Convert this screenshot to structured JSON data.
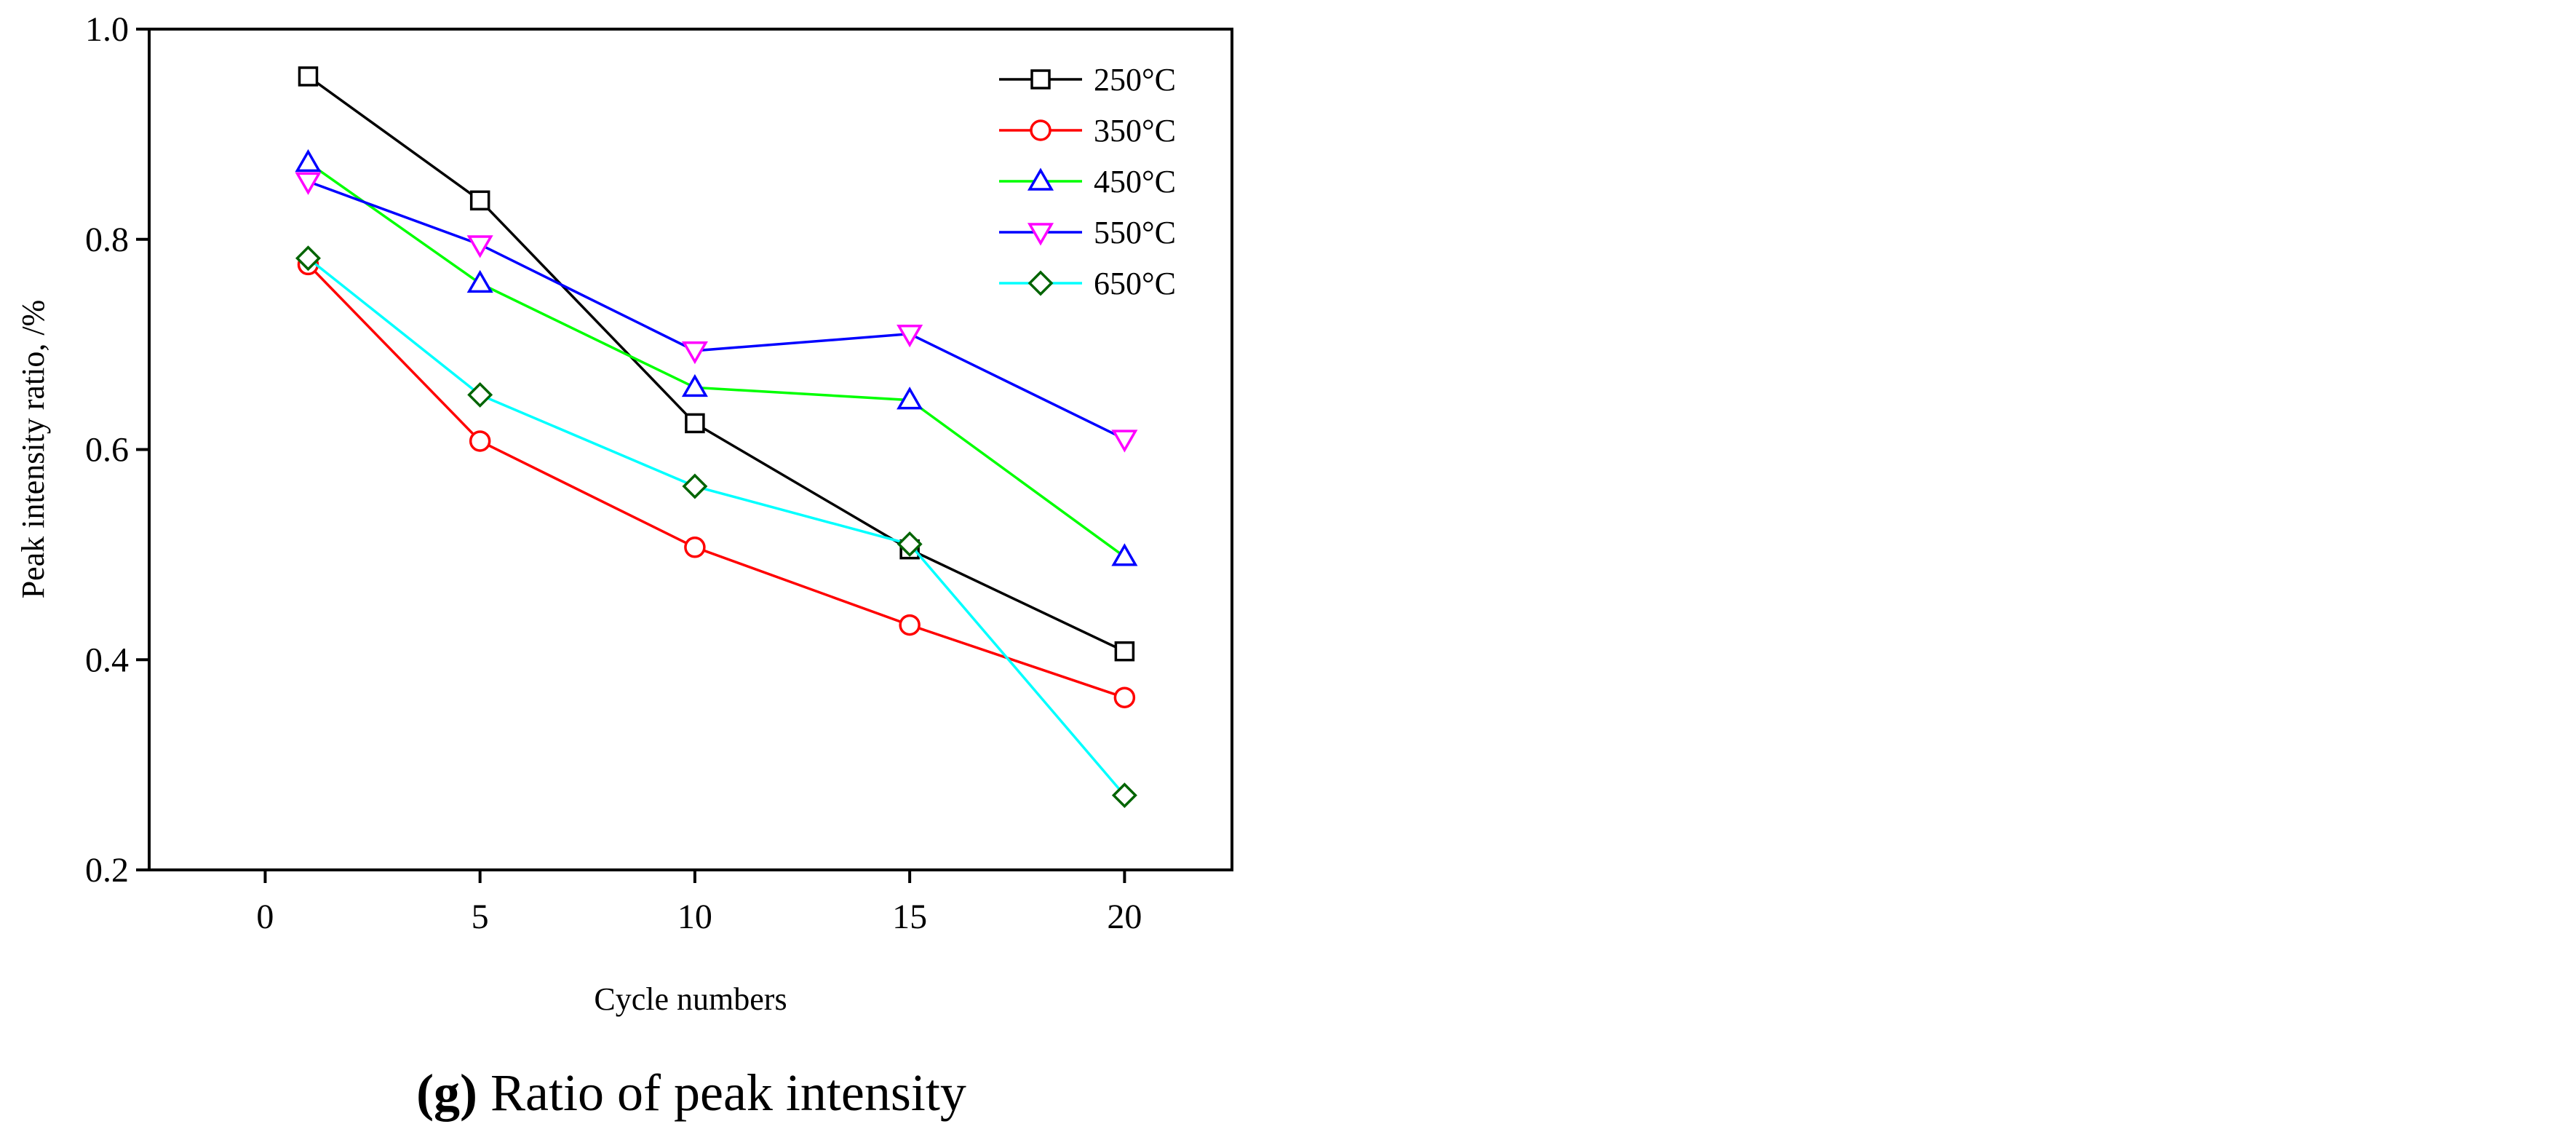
{
  "chart_data": {
    "type": "line",
    "xlabel": "Cycle numbers",
    "ylabel": "Peak intensity ratio, /%",
    "xlim": [
      -2.7,
      22.5
    ],
    "ylim": [
      0.2,
      1.0
    ],
    "xticks": [
      0,
      5,
      10,
      15,
      20
    ],
    "yticks": [
      0.2,
      0.4,
      0.6,
      0.8,
      1.0
    ],
    "xtick_labels": [
      "0",
      "5",
      "10",
      "15",
      "20"
    ],
    "ytick_labels": [
      "0.2",
      "0.4",
      "0.6",
      "0.8",
      "1.0"
    ],
    "legend_position": "top-right",
    "series": [
      {
        "name": "250°C",
        "color": "#000000",
        "marker": "square",
        "x": [
          1,
          5,
          10,
          15,
          20
        ],
        "values": [
          0.955,
          0.837,
          0.625,
          0.505,
          0.408
        ]
      },
      {
        "name": "350°C",
        "color": "#ff0000",
        "marker": "circle",
        "x": [
          1,
          5,
          10,
          15,
          20
        ],
        "values": [
          0.776,
          0.608,
          0.507,
          0.433,
          0.364
        ]
      },
      {
        "name": "450°C",
        "color": "#00ff00",
        "marker_color": "#0000ff",
        "marker": "triangle-up",
        "x": [
          1,
          5,
          10,
          15,
          20
        ],
        "values": [
          0.873,
          0.758,
          0.659,
          0.647,
          0.498
        ]
      },
      {
        "name": "550°C",
        "color": "#0000ff",
        "marker_color": "#ff00ff",
        "marker": "triangle-down",
        "x": [
          1,
          5,
          10,
          15,
          20
        ],
        "values": [
          0.855,
          0.795,
          0.694,
          0.71,
          0.61
        ]
      },
      {
        "name": "650°C",
        "color": "#00ffff",
        "marker_color": "#006400",
        "marker": "diamond",
        "x": [
          1,
          5,
          10,
          15,
          20
        ],
        "values": [
          0.782,
          0.652,
          0.565,
          0.51,
          0.271
        ]
      }
    ]
  },
  "caption": {
    "label": "(g)",
    "text": " Ratio of peak intensity"
  }
}
